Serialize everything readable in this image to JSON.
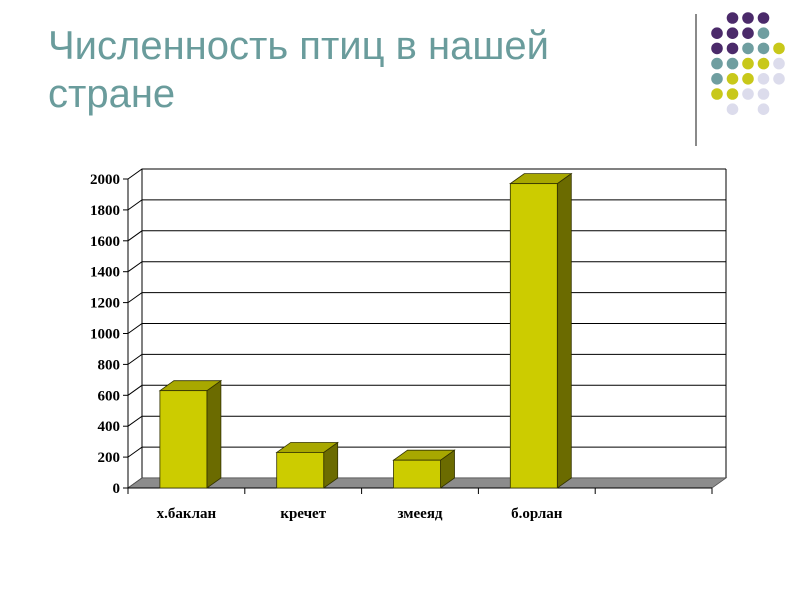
{
  "slide": {
    "title": "Численность птиц в нашей стране"
  },
  "decoration": {
    "dot_colors": {
      "purple": "#4b2a6a",
      "teal": "#6f9ea0",
      "yellow": "#c8c81a",
      "lavender": "#dcdcec"
    }
  },
  "chart_data": {
    "type": "bar",
    "title": "",
    "xlabel": "",
    "ylabel": "",
    "categories": [
      "х.баклан",
      "кречет",
      "змееяд",
      "б.орлан",
      ""
    ],
    "values": [
      630,
      230,
      180,
      1970,
      null
    ],
    "ylim": [
      0,
      2000
    ],
    "yticks": [
      0,
      200,
      400,
      600,
      800,
      1000,
      1200,
      1400,
      1600,
      1800,
      2000
    ],
    "grid": true,
    "legend": "none",
    "three_d": true,
    "colors": {
      "bar_front": "#cccc00",
      "bar_top": "#a8a800",
      "bar_side": "#6b6b00",
      "floor": "#8c8c8c",
      "grid": "#000000",
      "back_wall": "#ffffff"
    }
  }
}
